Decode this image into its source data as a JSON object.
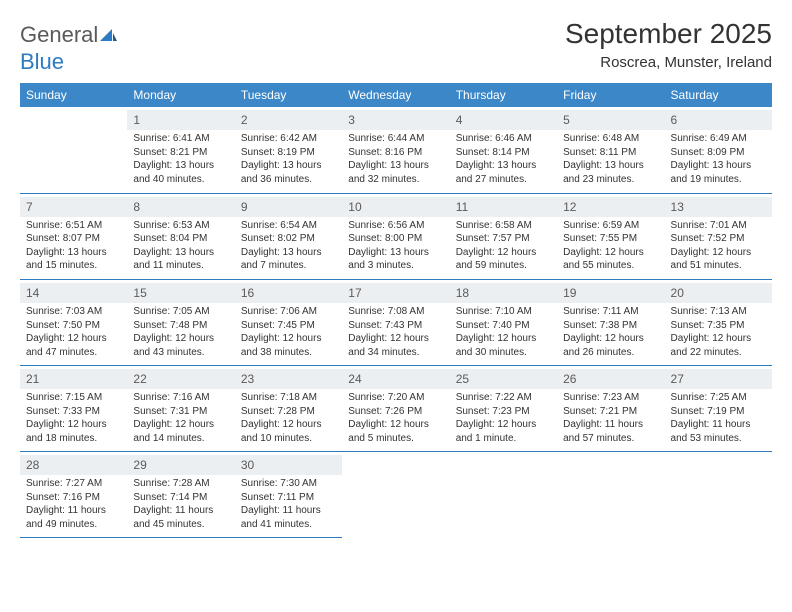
{
  "logo": {
    "text1": "General",
    "text2": "Blue"
  },
  "title": "September 2025",
  "location": "Roscrea, Munster, Ireland",
  "day_labels": [
    "Sunday",
    "Monday",
    "Tuesday",
    "Wednesday",
    "Thursday",
    "Friday",
    "Saturday"
  ],
  "colors": {
    "header_bg": "#3b87c8",
    "header_text": "#ffffff",
    "border": "#2d7bc0",
    "daynum_bg": "#eceff2",
    "text": "#333333"
  },
  "weeks": [
    [
      null,
      {
        "n": "1",
        "sr": "Sunrise: 6:41 AM",
        "ss": "Sunset: 8:21 PM",
        "dl": "Daylight: 13 hours and 40 minutes."
      },
      {
        "n": "2",
        "sr": "Sunrise: 6:42 AM",
        "ss": "Sunset: 8:19 PM",
        "dl": "Daylight: 13 hours and 36 minutes."
      },
      {
        "n": "3",
        "sr": "Sunrise: 6:44 AM",
        "ss": "Sunset: 8:16 PM",
        "dl": "Daylight: 13 hours and 32 minutes."
      },
      {
        "n": "4",
        "sr": "Sunrise: 6:46 AM",
        "ss": "Sunset: 8:14 PM",
        "dl": "Daylight: 13 hours and 27 minutes."
      },
      {
        "n": "5",
        "sr": "Sunrise: 6:48 AM",
        "ss": "Sunset: 8:11 PM",
        "dl": "Daylight: 13 hours and 23 minutes."
      },
      {
        "n": "6",
        "sr": "Sunrise: 6:49 AM",
        "ss": "Sunset: 8:09 PM",
        "dl": "Daylight: 13 hours and 19 minutes."
      }
    ],
    [
      {
        "n": "7",
        "sr": "Sunrise: 6:51 AM",
        "ss": "Sunset: 8:07 PM",
        "dl": "Daylight: 13 hours and 15 minutes."
      },
      {
        "n": "8",
        "sr": "Sunrise: 6:53 AM",
        "ss": "Sunset: 8:04 PM",
        "dl": "Daylight: 13 hours and 11 minutes."
      },
      {
        "n": "9",
        "sr": "Sunrise: 6:54 AM",
        "ss": "Sunset: 8:02 PM",
        "dl": "Daylight: 13 hours and 7 minutes."
      },
      {
        "n": "10",
        "sr": "Sunrise: 6:56 AM",
        "ss": "Sunset: 8:00 PM",
        "dl": "Daylight: 13 hours and 3 minutes."
      },
      {
        "n": "11",
        "sr": "Sunrise: 6:58 AM",
        "ss": "Sunset: 7:57 PM",
        "dl": "Daylight: 12 hours and 59 minutes."
      },
      {
        "n": "12",
        "sr": "Sunrise: 6:59 AM",
        "ss": "Sunset: 7:55 PM",
        "dl": "Daylight: 12 hours and 55 minutes."
      },
      {
        "n": "13",
        "sr": "Sunrise: 7:01 AM",
        "ss": "Sunset: 7:52 PM",
        "dl": "Daylight: 12 hours and 51 minutes."
      }
    ],
    [
      {
        "n": "14",
        "sr": "Sunrise: 7:03 AM",
        "ss": "Sunset: 7:50 PM",
        "dl": "Daylight: 12 hours and 47 minutes."
      },
      {
        "n": "15",
        "sr": "Sunrise: 7:05 AM",
        "ss": "Sunset: 7:48 PM",
        "dl": "Daylight: 12 hours and 43 minutes."
      },
      {
        "n": "16",
        "sr": "Sunrise: 7:06 AM",
        "ss": "Sunset: 7:45 PM",
        "dl": "Daylight: 12 hours and 38 minutes."
      },
      {
        "n": "17",
        "sr": "Sunrise: 7:08 AM",
        "ss": "Sunset: 7:43 PM",
        "dl": "Daylight: 12 hours and 34 minutes."
      },
      {
        "n": "18",
        "sr": "Sunrise: 7:10 AM",
        "ss": "Sunset: 7:40 PM",
        "dl": "Daylight: 12 hours and 30 minutes."
      },
      {
        "n": "19",
        "sr": "Sunrise: 7:11 AM",
        "ss": "Sunset: 7:38 PM",
        "dl": "Daylight: 12 hours and 26 minutes."
      },
      {
        "n": "20",
        "sr": "Sunrise: 7:13 AM",
        "ss": "Sunset: 7:35 PM",
        "dl": "Daylight: 12 hours and 22 minutes."
      }
    ],
    [
      {
        "n": "21",
        "sr": "Sunrise: 7:15 AM",
        "ss": "Sunset: 7:33 PM",
        "dl": "Daylight: 12 hours and 18 minutes."
      },
      {
        "n": "22",
        "sr": "Sunrise: 7:16 AM",
        "ss": "Sunset: 7:31 PM",
        "dl": "Daylight: 12 hours and 14 minutes."
      },
      {
        "n": "23",
        "sr": "Sunrise: 7:18 AM",
        "ss": "Sunset: 7:28 PM",
        "dl": "Daylight: 12 hours and 10 minutes."
      },
      {
        "n": "24",
        "sr": "Sunrise: 7:20 AM",
        "ss": "Sunset: 7:26 PM",
        "dl": "Daylight: 12 hours and 5 minutes."
      },
      {
        "n": "25",
        "sr": "Sunrise: 7:22 AM",
        "ss": "Sunset: 7:23 PM",
        "dl": "Daylight: 12 hours and 1 minute."
      },
      {
        "n": "26",
        "sr": "Sunrise: 7:23 AM",
        "ss": "Sunset: 7:21 PM",
        "dl": "Daylight: 11 hours and 57 minutes."
      },
      {
        "n": "27",
        "sr": "Sunrise: 7:25 AM",
        "ss": "Sunset: 7:19 PM",
        "dl": "Daylight: 11 hours and 53 minutes."
      }
    ],
    [
      {
        "n": "28",
        "sr": "Sunrise: 7:27 AM",
        "ss": "Sunset: 7:16 PM",
        "dl": "Daylight: 11 hours and 49 minutes."
      },
      {
        "n": "29",
        "sr": "Sunrise: 7:28 AM",
        "ss": "Sunset: 7:14 PM",
        "dl": "Daylight: 11 hours and 45 minutes."
      },
      {
        "n": "30",
        "sr": "Sunrise: 7:30 AM",
        "ss": "Sunset: 7:11 PM",
        "dl": "Daylight: 11 hours and 41 minutes."
      },
      null,
      null,
      null,
      null
    ]
  ]
}
